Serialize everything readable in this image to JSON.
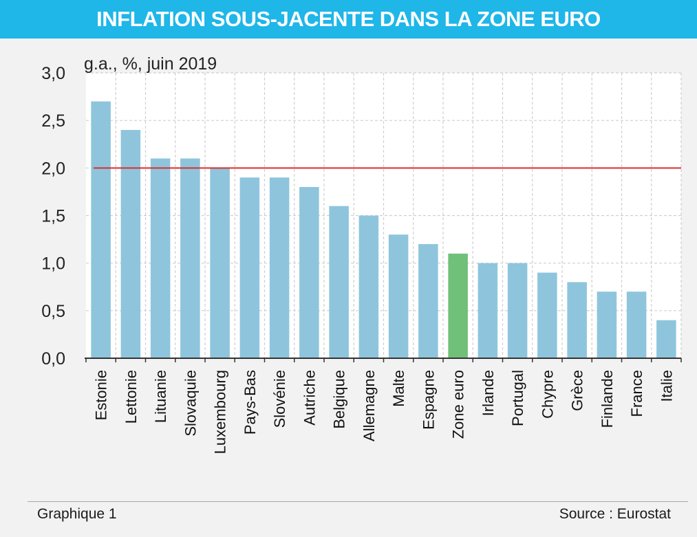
{
  "header": {
    "title": "INFLATION SOUS-JACENTE DANS LA ZONE EURO"
  },
  "footer": {
    "left": "Graphique 1",
    "right": "Source : Eurostat"
  },
  "chart_data": {
    "type": "bar",
    "subtitle": "g.a., %, juin 2019",
    "categories": [
      "Estonie",
      "Lettonie",
      "Lituanie",
      "Slovaquie",
      "Luxembourg",
      "Pays-Bas",
      "Slovénie",
      "Autriche",
      "Belgique",
      "Allemagne",
      "Malte",
      "Espagne",
      "Zone euro",
      "Irlande",
      "Portugal",
      "Chypre",
      "Grèce",
      "Finlande",
      "France",
      "Italie"
    ],
    "values": [
      2.7,
      2.4,
      2.1,
      2.1,
      2.0,
      1.9,
      1.9,
      1.8,
      1.6,
      1.5,
      1.3,
      1.2,
      1.1,
      1.0,
      1.0,
      0.9,
      0.8,
      0.7,
      0.7,
      0.4
    ],
    "highlight_category": "Zone euro",
    "reference_line": 2.0,
    "ylim": [
      0,
      3.0
    ],
    "yticks": [
      "0,0",
      "0,5",
      "1,0",
      "1,5",
      "2,0",
      "2,5",
      "3,0"
    ],
    "grid": true,
    "colors": {
      "bar": "#8ec5dd",
      "highlight": "#70c07a",
      "reference_line": "#e02b2b",
      "grid": "#cfcfcf"
    }
  }
}
